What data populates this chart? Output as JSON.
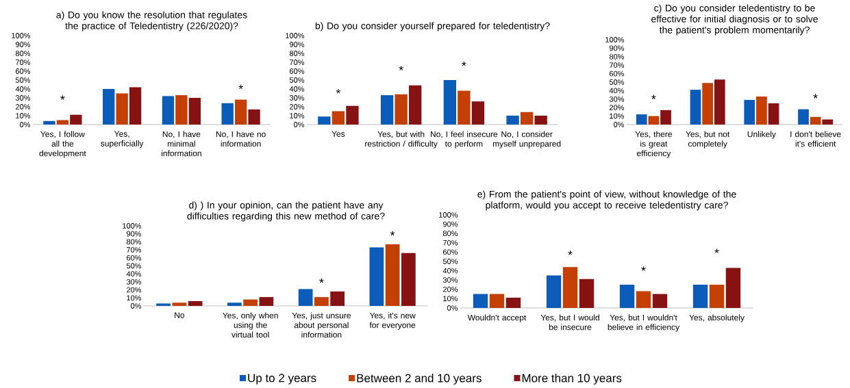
{
  "chart_data": [
    {
      "type": "bar",
      "title": "a) Do you know the resolution that regulates the practice of Teledentistry (226/2020)?",
      "categories": [
        "Yes, I follow all the development",
        "Yes, superficially",
        "No, I have minimal information",
        "No, I have no information"
      ],
      "series": [
        {
          "color": "#0a5cb8",
          "values": [
            4,
            40,
            32,
            24
          ]
        },
        {
          "color": "#c33f04",
          "values": [
            5,
            35,
            33,
            28
          ]
        },
        {
          "color": "#861213",
          "values": [
            11,
            42,
            30,
            17
          ]
        }
      ],
      "ylim": [
        0,
        100
      ],
      "yticks": [
        {
          "value": 0,
          "label": "0%"
        },
        {
          "value": 10,
          "label": "10%"
        },
        {
          "value": 20,
          "label": "20%"
        },
        {
          "value": 30,
          "label": "30%"
        },
        {
          "value": 40,
          "label": "40%"
        },
        {
          "value": 50,
          "label": "50%"
        },
        {
          "value": 60,
          "label": "60%"
        },
        {
          "value": 70,
          "label": "70%"
        },
        {
          "value": 80,
          "label": "80%"
        },
        {
          "value": 90,
          "label": "90%"
        },
        {
          "value": 100,
          "label": "100%"
        }
      ],
      "annotations": [
        "*",
        "*"
      ]
    },
    {
      "type": "bar",
      "title": "b) Do you consider yourself prepared for teledentistry?",
      "categories": [
        "Yes",
        "Yes, but with restriction / difficulty",
        "No, I feel insecure to perform",
        "No, I consider myself unprepared"
      ],
      "series": [
        {
          "color": "#0a5cb8",
          "values": [
            9,
            33,
            50,
            10
          ]
        },
        {
          "color": "#c33f04",
          "values": [
            15,
            34,
            38,
            14
          ]
        },
        {
          "color": "#861213",
          "values": [
            21,
            44,
            26,
            10
          ]
        }
      ],
      "ylim": [
        0,
        100
      ],
      "yticks": [
        {
          "value": 0,
          "label": "0%"
        },
        {
          "value": 10,
          "label": "10%"
        },
        {
          "value": 20,
          "label": "20%"
        },
        {
          "value": 30,
          "label": "30%"
        },
        {
          "value": 40,
          "label": "40%"
        },
        {
          "value": 50,
          "label": "50%"
        },
        {
          "value": 60,
          "label": "60%"
        },
        {
          "value": 70,
          "label": "70%"
        },
        {
          "value": 80,
          "label": "80%"
        },
        {
          "value": 90,
          "label": "90%"
        },
        {
          "value": 100,
          "label": "100%"
        }
      ],
      "annotations": [
        "*",
        "*",
        "*"
      ]
    },
    {
      "type": "bar",
      "title": "c) Do you consider teledentistry to be effective for initial diagnosis or to solve the patient's problem momentarily?",
      "categories": [
        "Yes, there is great efficiency",
        "Yes, but not completely",
        "Unlikely",
        "I don't believe it's efficient"
      ],
      "series": [
        {
          "color": "#0a5cb8",
          "values": [
            12,
            41,
            29,
            18
          ]
        },
        {
          "color": "#c33f04",
          "values": [
            10,
            49,
            33,
            9
          ]
        },
        {
          "color": "#861213",
          "values": [
            17,
            53,
            25,
            6
          ]
        }
      ],
      "ylim": [
        0,
        100
      ],
      "yticks": [
        {
          "value": 0,
          "label": "0%"
        },
        {
          "value": 10,
          "label": "10%"
        },
        {
          "value": 20,
          "label": "20%"
        },
        {
          "value": 30,
          "label": "30%"
        },
        {
          "value": 40,
          "label": "40%"
        },
        {
          "value": 50,
          "label": "50%"
        },
        {
          "value": 60,
          "label": "60%"
        },
        {
          "value": 70,
          "label": "70%"
        },
        {
          "value": 80,
          "label": "80%"
        },
        {
          "value": 90,
          "label": "90%"
        },
        {
          "value": 100,
          "label": "100%"
        }
      ],
      "annotations": [
        "*",
        "*"
      ]
    },
    {
      "type": "bar",
      "title": "d) ) In your opinion, can the patient have any difficulties regarding this new method of care?",
      "categories": [
        "No",
        "Yes, only when using the virtual tool",
        "Yes, just unsure about personal information",
        "Yes, it's new for everyone"
      ],
      "series": [
        {
          "name": "Up to 2 years",
          "color": "#0a5cb8",
          "values": [
            3,
            4,
            21,
            73
          ]
        },
        {
          "name": "Between 2 and 10 years",
          "color": "#c33f04",
          "values": [
            4,
            8,
            11,
            77
          ]
        },
        {
          "name": "More than 10 years",
          "color": "#861213",
          "values": [
            6,
            11,
            18,
            66
          ]
        }
      ],
      "ylim": [
        0,
        100
      ],
      "yticks": [
        {
          "value": 0,
          "label": "0%"
        },
        {
          "value": 10,
          "label": "10%"
        },
        {
          "value": 20,
          "label": "20%"
        },
        {
          "value": 30,
          "label": "30%"
        },
        {
          "value": 40,
          "label": "40%"
        },
        {
          "value": 50,
          "label": "50%"
        },
        {
          "value": 60,
          "label": "60%"
        },
        {
          "value": 70,
          "label": "70%"
        },
        {
          "value": 80,
          "label": "80%"
        },
        {
          "value": 90,
          "label": "90%"
        },
        {
          "value": 100,
          "label": "100%"
        }
      ],
      "legend": "bottom",
      "annotations": [
        "*",
        "*"
      ]
    },
    {
      "type": "bar",
      "title": "e) From the patient's point of view, without knowledge of the platform, would you accept to receive teledentistry care?",
      "categories": [
        "Wouldn't accept",
        "Yes, but I would be insecure",
        "Yes, but I wouldn't believe in efficiency",
        "Yes, absolutely"
      ],
      "series": [
        {
          "color": "#0a5cb8",
          "values": [
            15,
            35,
            25,
            25
          ]
        },
        {
          "color": "#c33f04",
          "values": [
            15,
            44,
            18,
            25
          ]
        },
        {
          "color": "#861213",
          "values": [
            11,
            31,
            15,
            43
          ]
        }
      ],
      "ylim": [
        0,
        100
      ],
      "yticks": [
        {
          "value": 0,
          "label": "0%"
        },
        {
          "value": 10,
          "label": "10%"
        },
        {
          "value": 20,
          "label": "20%"
        },
        {
          "value": 30,
          "label": "30%"
        },
        {
          "value": 40,
          "label": "40%"
        },
        {
          "value": 50,
          "label": "50%"
        },
        {
          "value": 60,
          "label": "60%"
        },
        {
          "value": 70,
          "label": "70%"
        },
        {
          "value": 80,
          "label": "80%"
        },
        {
          "value": 90,
          "label": "90%"
        },
        {
          "value": 100,
          "label": "100%"
        }
      ],
      "annotations": [
        "*",
        "*",
        "*"
      ]
    }
  ]
}
